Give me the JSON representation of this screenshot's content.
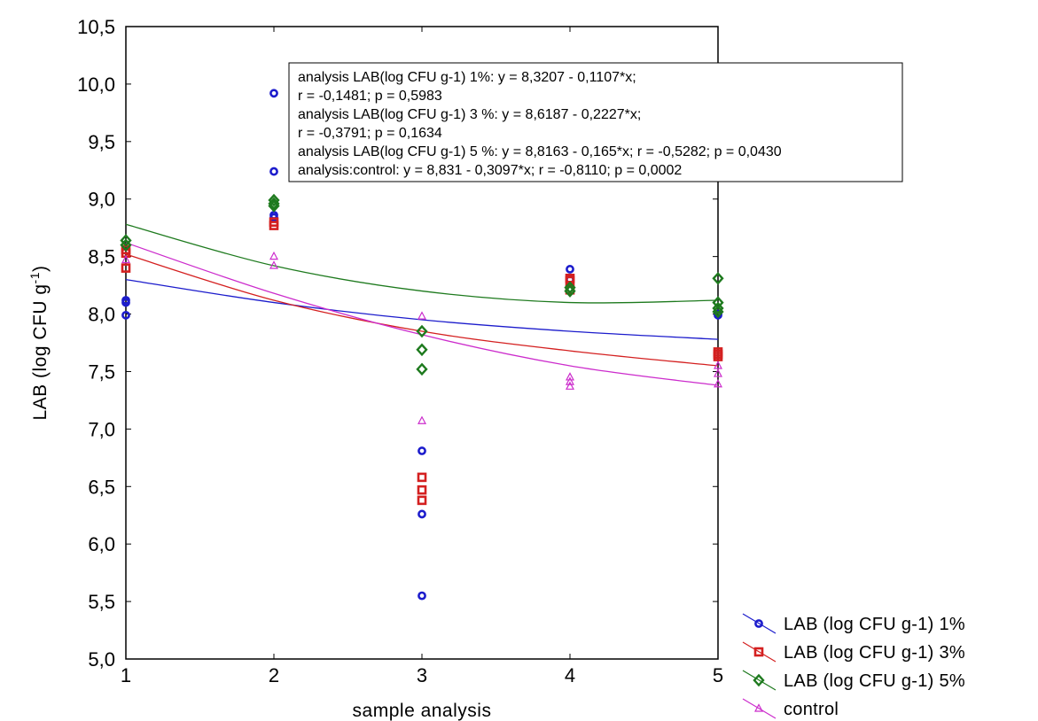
{
  "chart_data": {
    "type": "scatter",
    "xlabel": "sample analysis",
    "ylabel_main": "LAB (log CFU g",
    "ylabel_sup": "-1",
    "ylabel_end": ")",
    "xlim": [
      1,
      5
    ],
    "ylim": [
      5.0,
      10.5
    ],
    "x_ticks": [
      1,
      2,
      3,
      4,
      5
    ],
    "x_tick_labels": [
      "1",
      "2",
      "3",
      "4",
      "5"
    ],
    "y_ticks": [
      5.0,
      5.5,
      6.0,
      6.5,
      7.0,
      7.5,
      8.0,
      8.5,
      9.0,
      9.5,
      10.0,
      10.5
    ],
    "y_tick_labels": [
      "5,0",
      "5,5",
      "6,0",
      "6,5",
      "7,0",
      "7,5",
      "8,0",
      "8,5",
      "9,0",
      "9,5",
      "10,0",
      "10,5"
    ],
    "grid": false,
    "legend_position": "bottom-right outside",
    "annotation_lines": [
      "analysis LAB(log CFU g-1) 1%:  y = 8,3207 - 0,1107*x;",
      "r = -0,1481; p = 0,5983",
      "analysis LAB(log CFU g-1) 3 %:  y = 8,6187 - 0,2227*x;",
      "r = -0,3791; p = 0,1634",
      "analysis LAB(log CFU g-1) 5 %:  y = 8,8163 - 0,165*x; r = -0,5282; p = 0,0430",
      "analysis:control:  y = 8,831 - 0,3097*x; r = -0,8110; p = 0,0002"
    ],
    "series": [
      {
        "name": "LAB (log CFU g-1) 1%",
        "color": "#1c1ccc",
        "marker": "circle",
        "points": [
          [
            1,
            8.12
          ],
          [
            1,
            8.1
          ],
          [
            1,
            7.99
          ],
          [
            2,
            9.92
          ],
          [
            2,
            9.24
          ],
          [
            2,
            8.86
          ],
          [
            2,
            8.84
          ],
          [
            3,
            6.81
          ],
          [
            3,
            6.26
          ],
          [
            3,
            5.55
          ],
          [
            4,
            8.39
          ],
          [
            4,
            8.3
          ],
          [
            5,
            8.0
          ],
          [
            5,
            7.99
          ]
        ],
        "curve": [
          [
            1,
            8.3
          ],
          [
            2,
            8.1
          ],
          [
            3,
            7.95
          ],
          [
            4,
            7.85
          ],
          [
            5,
            7.78
          ]
        ]
      },
      {
        "name": "LAB (log CFU g-1) 3%",
        "color": "#d42020",
        "marker": "square",
        "points": [
          [
            1,
            8.56
          ],
          [
            1,
            8.53
          ],
          [
            1,
            8.4
          ],
          [
            2,
            8.8
          ],
          [
            2,
            8.77
          ],
          [
            3,
            6.58
          ],
          [
            3,
            6.47
          ],
          [
            3,
            6.38
          ],
          [
            4,
            8.31
          ],
          [
            4,
            8.29
          ],
          [
            4,
            8.21
          ],
          [
            5,
            7.67
          ],
          [
            5,
            7.65
          ],
          [
            5,
            7.63
          ]
        ],
        "curve": [
          [
            1,
            8.52
          ],
          [
            2,
            8.12
          ],
          [
            3,
            7.85
          ],
          [
            4,
            7.68
          ],
          [
            5,
            7.55
          ]
        ]
      },
      {
        "name": "LAB (log CFU g-1) 5%",
        "color": "#1e7a1e",
        "marker": "diamond",
        "points": [
          [
            1,
            8.64
          ],
          [
            1,
            8.6
          ],
          [
            2,
            8.99
          ],
          [
            2,
            8.96
          ],
          [
            2,
            8.94
          ],
          [
            3,
            7.85
          ],
          [
            3,
            7.69
          ],
          [
            3,
            7.52
          ],
          [
            4,
            8.23
          ],
          [
            4,
            8.2
          ],
          [
            5,
            8.31
          ],
          [
            5,
            8.1
          ],
          [
            5,
            8.05
          ],
          [
            5,
            8.02
          ]
        ],
        "curve": [
          [
            1,
            8.78
          ],
          [
            2,
            8.42
          ],
          [
            3,
            8.2
          ],
          [
            4,
            8.1
          ],
          [
            5,
            8.12
          ]
        ]
      },
      {
        "name": "control",
        "color": "#cc2ccc",
        "marker": "triangle",
        "points": [
          [
            1,
            8.47
          ],
          [
            2,
            8.5
          ],
          [
            2,
            8.42
          ],
          [
            3,
            7.98
          ],
          [
            3,
            7.07
          ],
          [
            4,
            7.45
          ],
          [
            4,
            7.41
          ],
          [
            4,
            7.37
          ],
          [
            5,
            7.55
          ],
          [
            5,
            7.48
          ],
          [
            5,
            7.39
          ]
        ],
        "curve": [
          [
            1,
            8.62
          ],
          [
            2,
            8.18
          ],
          [
            3,
            7.82
          ],
          [
            4,
            7.55
          ],
          [
            5,
            7.38
          ]
        ]
      }
    ]
  }
}
